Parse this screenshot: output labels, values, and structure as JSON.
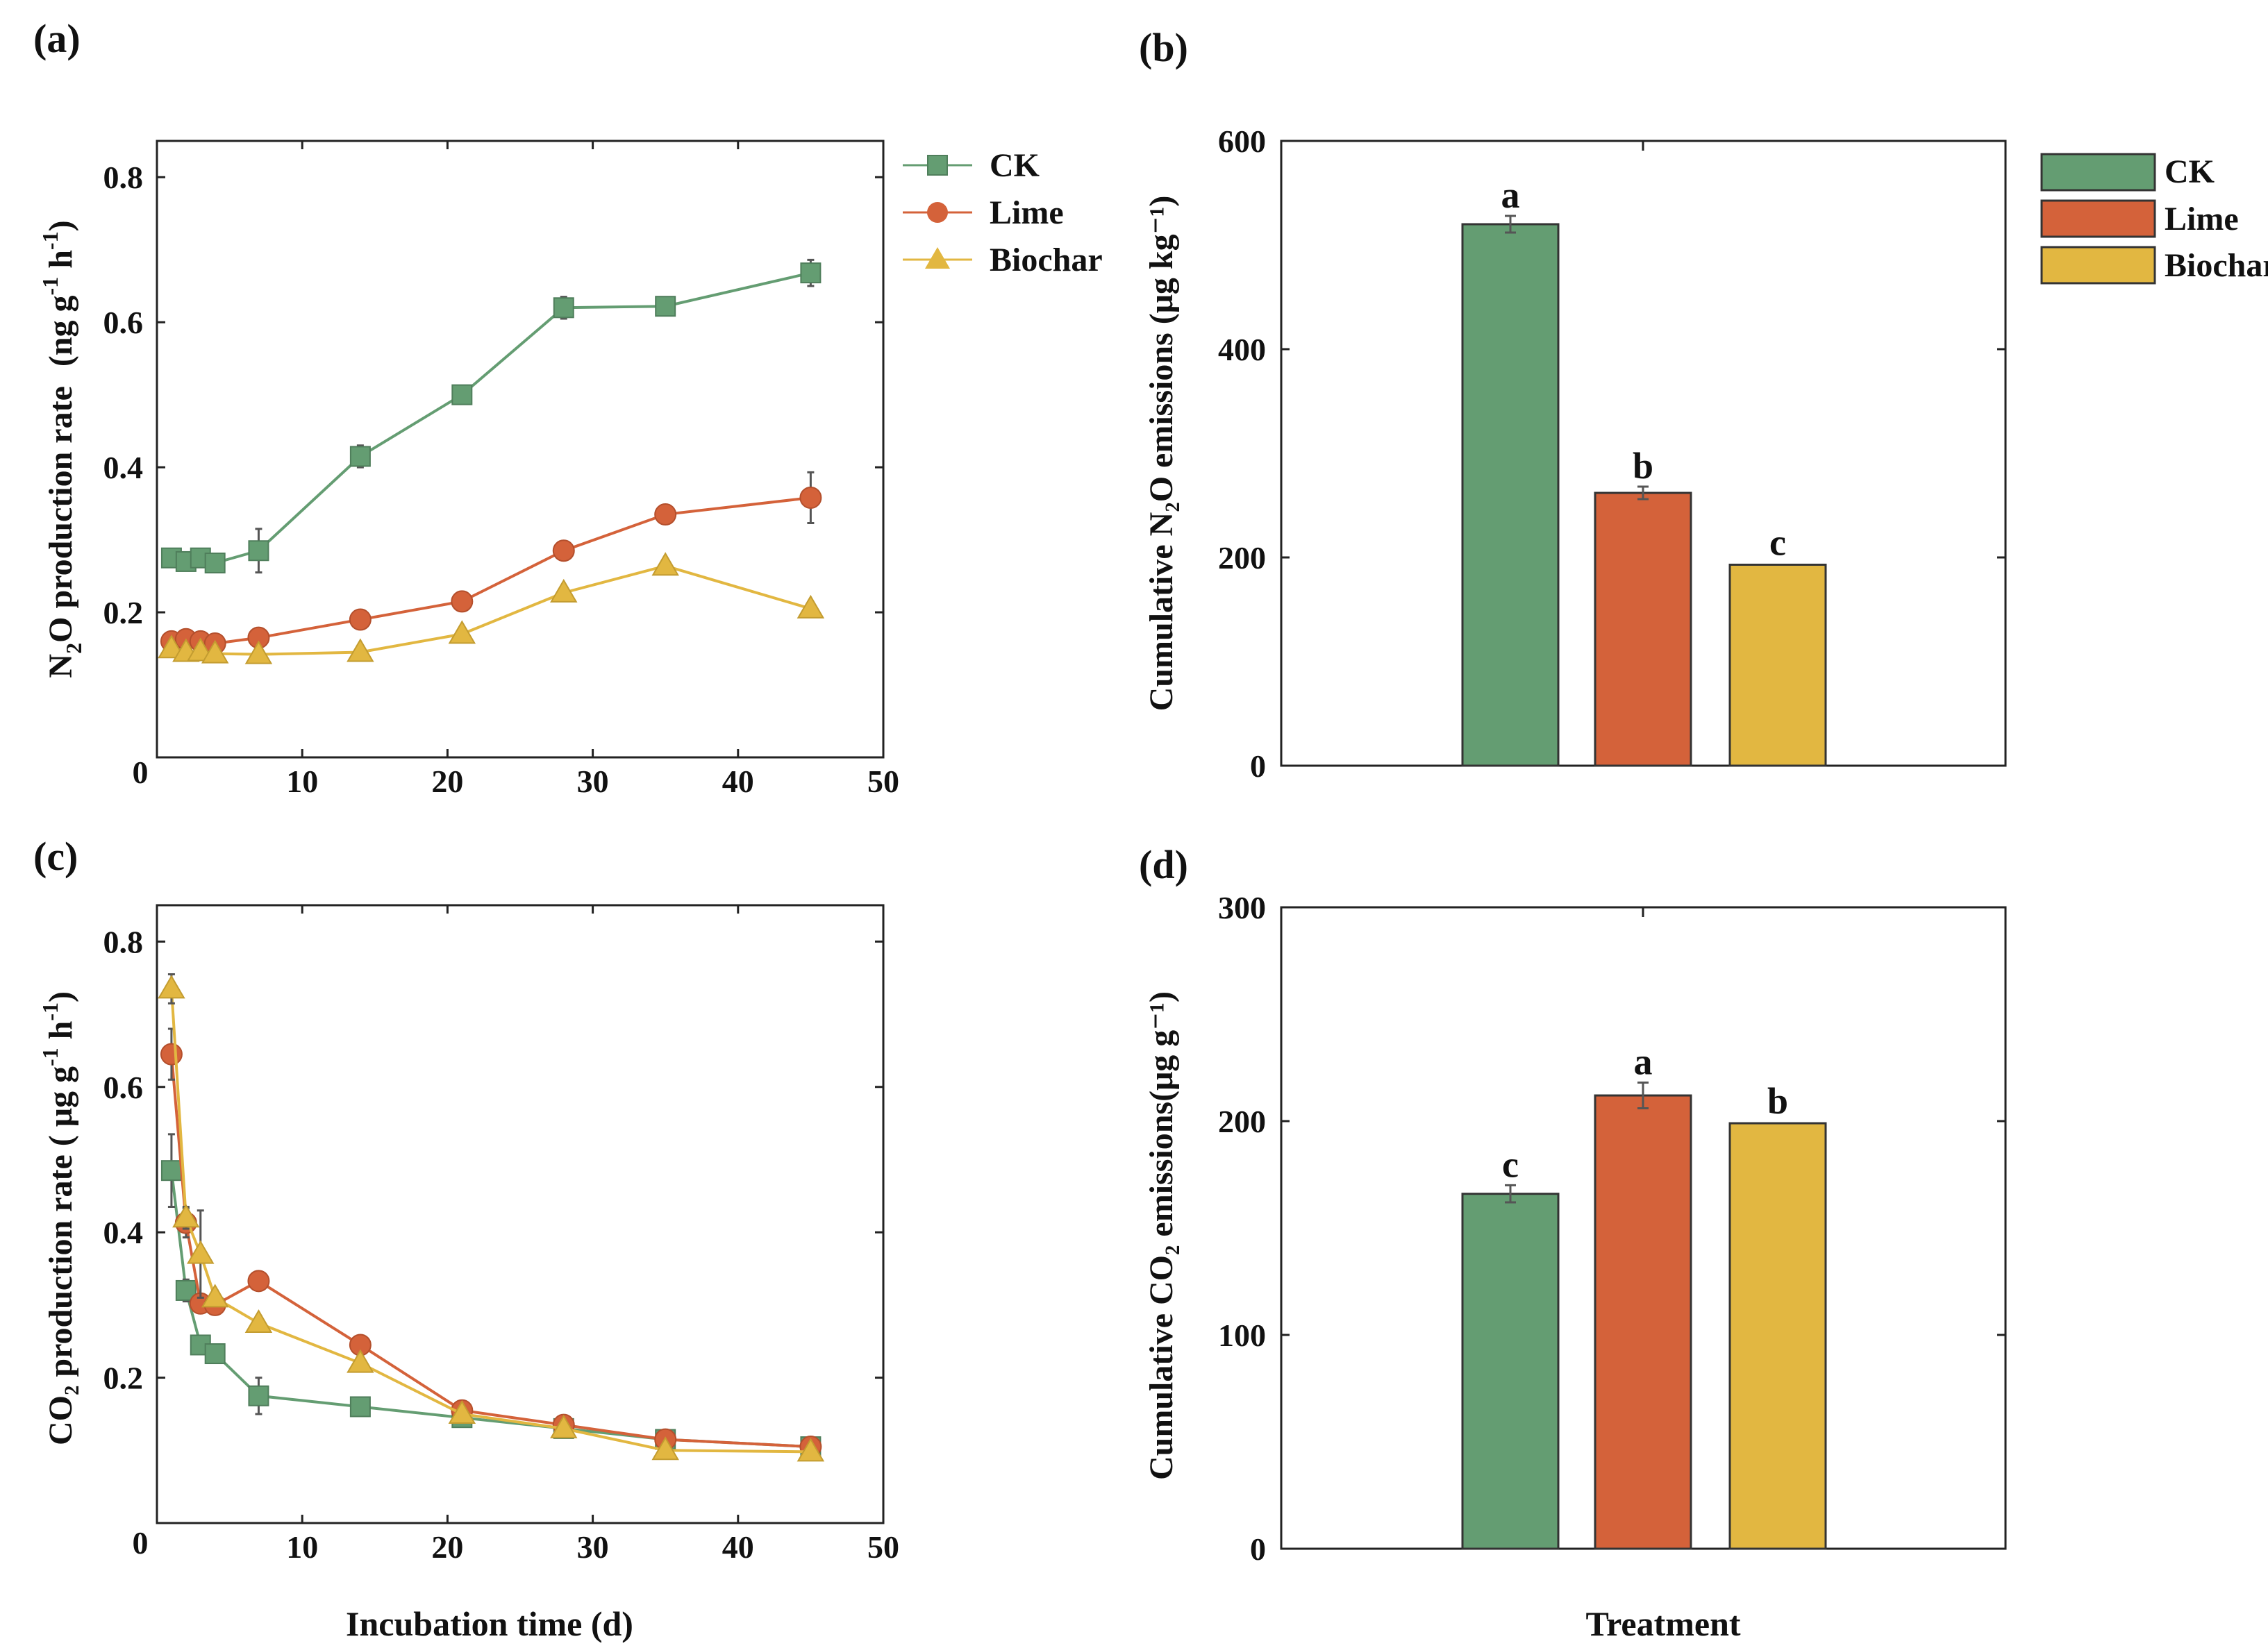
{
  "colors": {
    "CK": "#649d72",
    "Lime": "#d4623a",
    "Biochar": "#e2b741"
  },
  "chart_data": [
    {
      "panel": "(a)",
      "type": "line",
      "title": "",
      "xlabel": "",
      "ylabel": "N2O production rate (ng g-1 h-1)",
      "ylabel_parts": {
        "n": "N",
        "sub": "2",
        "o_rate": "O production rate",
        "unit_a": "(ng g",
        "sup1": "-1",
        "unit_b": " h",
        "sup2": "-1",
        "unit_c": ")"
      },
      "xlim": [
        0,
        50
      ],
      "ylim": [
        0,
        0.85
      ],
      "xticks": [
        0,
        10,
        20,
        30,
        40,
        50
      ],
      "yticks": [
        0,
        0.2,
        0.4,
        0.6,
        0.8
      ],
      "xticklabels": [
        "0",
        "10",
        "20",
        "30",
        "40",
        "50"
      ],
      "yticklabels": [
        "",
        "0.2",
        "0.4",
        "0.6",
        "0.8"
      ],
      "origin_label": "0",
      "x": [
        1,
        2,
        3,
        4,
        7,
        14,
        21,
        28,
        35,
        45
      ],
      "series": [
        {
          "name": "CK",
          "marker": "square",
          "values": [
            0.275,
            0.27,
            0.275,
            0.268,
            0.285,
            0.415,
            0.5,
            0.62,
            0.622,
            0.668
          ],
          "errors": [
            0.01,
            0.008,
            0.008,
            0.008,
            0.03,
            0.015,
            0.008,
            0.015,
            0.008,
            0.018
          ]
        },
        {
          "name": "Lime",
          "marker": "circle",
          "values": [
            0.16,
            0.163,
            0.16,
            0.157,
            0.165,
            0.19,
            0.215,
            0.285,
            0.335,
            0.358
          ],
          "errors": [
            0.008,
            0.006,
            0.006,
            0.006,
            0.008,
            0.008,
            0.006,
            0.01,
            0.006,
            0.035
          ]
        },
        {
          "name": "Biochar",
          "marker": "triangle",
          "values": [
            0.15,
            0.145,
            0.146,
            0.143,
            0.142,
            0.145,
            0.17,
            0.227,
            0.264,
            0.205
          ],
          "errors": [
            0.006,
            0.005,
            0.005,
            0.005,
            0.005,
            0.005,
            0.006,
            0.008,
            0.008,
            0.006
          ]
        }
      ],
      "legend": {
        "position": "right-outside",
        "entries": [
          "CK",
          "Lime",
          "Biochar"
        ]
      }
    },
    {
      "panel": "(b)",
      "type": "bar",
      "title": "",
      "xlabel": "",
      "ylabel": "Cumulative N₂O emissions (μg kg⁻¹)",
      "ylim": [
        0,
        600
      ],
      "yticks": [
        0,
        200,
        400,
        600
      ],
      "yticklabels": [
        "0",
        "200",
        "400",
        "600"
      ],
      "categories": [
        "CK",
        "Lime",
        "Biochar"
      ],
      "values": [
        520,
        262,
        193
      ],
      "errors": [
        8,
        6,
        0
      ],
      "letters": [
        "a",
        "b",
        "c"
      ],
      "legend": {
        "position": "right-outside",
        "entries": [
          "CK",
          "Lime",
          "Biochar"
        ]
      }
    },
    {
      "panel": "(c)",
      "type": "line",
      "title": "",
      "xlabel": "Incubation time (d)",
      "ylabel": "CO₂ production rate ( μg g-1 h-1)",
      "ylabel_parts": {
        "main": "CO₂ production rate ( μg g",
        "sup1": "-1",
        "unit_b": " h",
        "sup2": "-1",
        "unit_c": ")"
      },
      "xlim": [
        0,
        50
      ],
      "ylim": [
        0,
        0.85
      ],
      "xticks": [
        0,
        10,
        20,
        30,
        40,
        50
      ],
      "yticks": [
        0,
        0.2,
        0.4,
        0.6,
        0.8
      ],
      "xticklabels": [
        "0",
        "10",
        "20",
        "30",
        "40",
        "50"
      ],
      "yticklabels": [
        "",
        "0.2",
        "0.4",
        "0.6",
        "0.8"
      ],
      "origin_label": "0",
      "x": [
        1,
        2,
        3,
        4,
        7,
        14,
        21,
        28,
        35,
        45
      ],
      "series": [
        {
          "name": "CK",
          "marker": "square",
          "values": [
            0.485,
            0.32,
            0.245,
            0.233,
            0.175,
            0.16,
            0.145,
            0.13,
            0.115,
            0.105
          ],
          "errors": [
            0.05,
            0.015,
            0.01,
            0.01,
            0.025,
            0.008,
            0.006,
            0.006,
            0.005,
            0.005
          ]
        },
        {
          "name": "Lime",
          "marker": "circle",
          "values": [
            0.645,
            0.413,
            0.302,
            0.3,
            0.333,
            0.245,
            0.155,
            0.135,
            0.115,
            0.105
          ],
          "errors": [
            0.035,
            0.02,
            0.012,
            0.012,
            0.012,
            0.01,
            0.006,
            0.006,
            0.006,
            0.005
          ]
        },
        {
          "name": "Biochar",
          "marker": "triangle",
          "values": [
            0.735,
            0.42,
            0.37,
            0.31,
            0.275,
            0.22,
            0.15,
            0.13,
            0.1,
            0.098
          ],
          "errors": [
            0.02,
            0.015,
            0.06,
            0.01,
            0.01,
            0.01,
            0.006,
            0.005,
            0.004,
            0.004
          ]
        }
      ]
    },
    {
      "panel": "(d)",
      "type": "bar",
      "title": "",
      "xlabel": "Treatment",
      "ylabel": "Cumulative CO₂ emissions(μg g⁻¹)",
      "ylim": [
        0,
        300
      ],
      "yticks": [
        0,
        100,
        200,
        300
      ],
      "yticklabels": [
        "0",
        "100",
        "200",
        "300"
      ],
      "categories": [
        "CK",
        "Lime",
        "Biochar"
      ],
      "values": [
        166,
        212,
        199
      ],
      "errors": [
        4,
        6,
        0
      ],
      "letters": [
        "c",
        "a",
        "b"
      ]
    }
  ]
}
